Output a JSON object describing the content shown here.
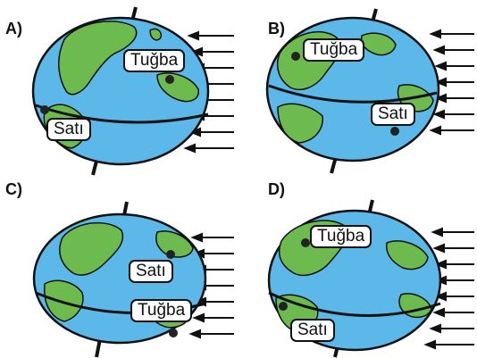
{
  "options": [
    {
      "letter": "A)",
      "labels": {
        "top": "Tuğba",
        "bottom": "Satı"
      }
    },
    {
      "letter": "B)",
      "labels": {
        "top": "Tuğba",
        "bottom": "Satı"
      }
    },
    {
      "letter": "C)",
      "labels": {
        "top": "Satı",
        "bottom": "Tuğba"
      }
    },
    {
      "letter": "D)",
      "labels": {
        "top": "Tuğba",
        "bottom": "Satı"
      }
    }
  ],
  "colors": {
    "ocean": "#5bb8e8",
    "land": "#6dbb4f",
    "outline": "#111111"
  }
}
